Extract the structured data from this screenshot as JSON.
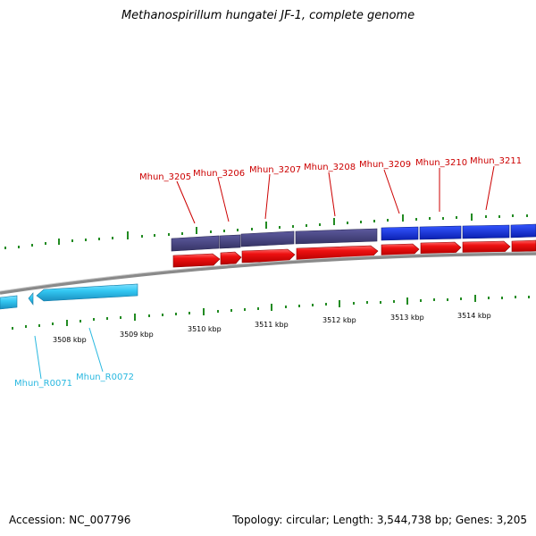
{
  "title": "Methanospirillum hungatei JF-1, complete genome",
  "footer": {
    "accession_label": "Accession:",
    "accession": "NC_007796",
    "topology_label": "Topology:",
    "topology": "circular",
    "length_label": "Length:",
    "length": "3,544,738 bp",
    "genes_label": "Genes:",
    "genes": "3,205"
  },
  "colors": {
    "cds_forward": "#ee1111",
    "cds_blue": "#1133dd",
    "cds_purple": "#4a4888",
    "rna": "#33c8f2",
    "tick": "#228b22",
    "backbone": "#888888",
    "label_red": "#cc0000",
    "label_rna": "#29b8e0"
  },
  "kbp_ticks": [
    "3508 kbp",
    "3509 kbp",
    "3510 kbp",
    "3511 kbp",
    "3512 kbp",
    "3513 kbp",
    "3514 kbp"
  ],
  "gene_labels": [
    "Mhun_3205",
    "Mhun_3206",
    "Mhun_3207",
    "Mhun_3208",
    "Mhun_3209",
    "Mhun_3210",
    "Mhun_3211"
  ],
  "rna_labels": [
    "Mhun_R0071",
    "Mhun_R0072"
  ]
}
